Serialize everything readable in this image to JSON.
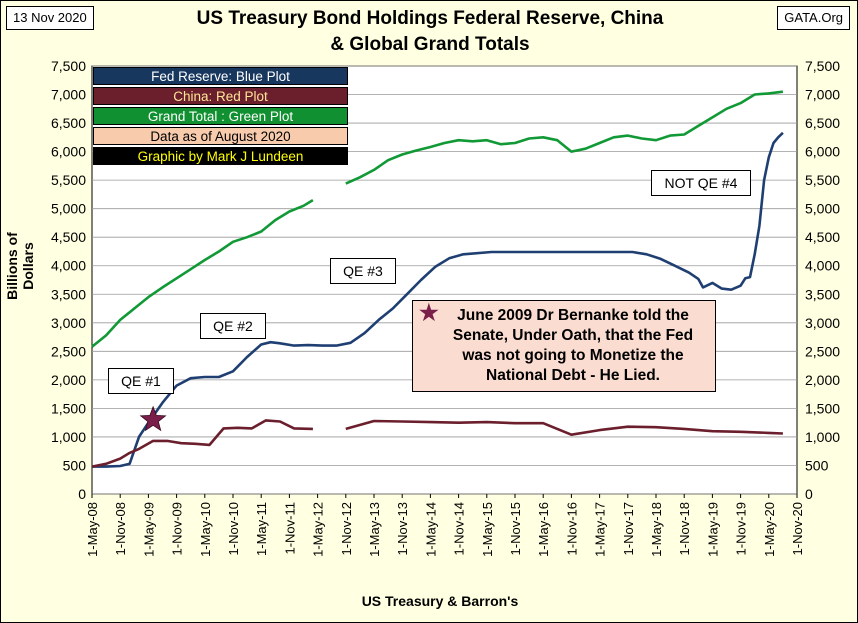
{
  "header": {
    "date": "13 Nov 2020",
    "source": "GATA.Org",
    "title_line1": "US Treasury Bond Holdings Federal Reserve, China",
    "title_line2": "& Global Grand Totals"
  },
  "legend": [
    {
      "label": "Fed Reserve: Blue Plot",
      "bg": "#17375e",
      "fg": "#ffffff"
    },
    {
      "label": "China: Red Plot",
      "bg": "#6b1f2c",
      "fg": "#ffe699"
    },
    {
      "label": "Grand Total : Green Plot",
      "bg": "#109030",
      "fg": "#ffffff"
    },
    {
      "label": "Data as of August 2020",
      "bg": "#f8cbad",
      "fg": "#000000"
    },
    {
      "label": "Graphic by Mark J Lundeen",
      "bg": "#000000",
      "fg": "#ffff00"
    }
  ],
  "annotations": {
    "qe1": "QE #1",
    "qe2": "QE #2",
    "qe3": "QE #3",
    "qe4": "NOT QE #4",
    "note_line1": "June 2009 Dr Bernanke told the",
    "note_line2": "Senate, Under Oath, that the Fed",
    "note_line3": "was not going to Monetize the",
    "note_line4": "National Debt - He Lied."
  },
  "colors": {
    "fed": "#1f3f73",
    "china": "#6b1f2c",
    "total": "#119936",
    "star": "#7a1f4a",
    "plot_bg": "#ffffff",
    "frame_bg": "#ffffe1"
  },
  "chart_data": {
    "type": "line",
    "ylabel": "Billions of Dollars",
    "xlabel": "US Treasury & Barron's",
    "ylim": [
      0,
      7500
    ],
    "y_ticks": [
      0,
      500,
      1000,
      1500,
      2000,
      2500,
      3000,
      3500,
      4000,
      4500,
      5000,
      5500,
      6000,
      6500,
      7000,
      7500
    ],
    "y_tick_labels": [
      "0",
      "500",
      "1,000",
      "1,500",
      "2,000",
      "2,500",
      "3,000",
      "3,500",
      "4,000",
      "4,500",
      "5,000",
      "5,500",
      "6,000",
      "6,500",
      "7,000",
      "7,500"
    ],
    "x_tick_labels": [
      "1-May-08",
      "1-Nov-08",
      "1-May-09",
      "1-Nov-09",
      "1-May-10",
      "1-Nov-10",
      "1-May-11",
      "1-Nov-11",
      "1-May-12",
      "1-Nov-12",
      "1-May-13",
      "1-Nov-13",
      "1-May-14",
      "1-Nov-14",
      "1-May-15",
      "1-Nov-15",
      "1-May-16",
      "1-Nov-16",
      "1-May-17",
      "1-Nov-17",
      "1-May-18",
      "1-Nov-18",
      "1-May-19",
      "1-Nov-19",
      "1-May-20",
      "1-Nov-20"
    ],
    "grid": true,
    "legend_position": "top-left",
    "star_marker": {
      "x": "1-Jun-09",
      "y": 1300
    },
    "series": [
      {
        "name": "Fed Reserve: Blue Plot",
        "x": [
          "2008-05",
          "2008-08",
          "2008-11",
          "2009-01",
          "2009-03",
          "2009-05",
          "2009-08",
          "2009-11",
          "2010-02",
          "2010-05",
          "2010-08",
          "2010-11",
          "2011-02",
          "2011-05",
          "2011-07",
          "2011-09",
          "2011-12",
          "2012-03",
          "2012-06",
          "2012-09",
          "2012-12",
          "2013-03",
          "2013-06",
          "2013-09",
          "2013-12",
          "2014-03",
          "2014-06",
          "2014-09",
          "2014-12",
          "2015-06",
          "2015-12",
          "2016-06",
          "2016-12",
          "2017-06",
          "2017-12",
          "2018-03",
          "2018-06",
          "2018-09",
          "2018-12",
          "2019-02",
          "2019-03",
          "2019-05",
          "2019-07",
          "2019-09",
          "2019-11",
          "2019-12",
          "2020-01",
          "2020-02",
          "2020-03",
          "2020-04",
          "2020-05",
          "2020-06",
          "2020-07",
          "2020-08"
        ],
        "y": [
          480,
          480,
          490,
          530,
          1000,
          1250,
          1600,
          1900,
          2030,
          2050,
          2050,
          2150,
          2400,
          2620,
          2660,
          2640,
          2600,
          2610,
          2600,
          2600,
          2650,
          2820,
          3050,
          3250,
          3500,
          3750,
          3980,
          4130,
          4200,
          4240,
          4240,
          4240,
          4240,
          4240,
          4240,
          4200,
          4120,
          4000,
          3880,
          3770,
          3620,
          3700,
          3600,
          3580,
          3650,
          3780,
          3800,
          4200,
          4700,
          5500,
          5900,
          6150,
          6250,
          6330
        ]
      },
      {
        "name": "China: Red Plot",
        "x": [
          "2008-05",
          "2008-08",
          "2008-11",
          "2009-01",
          "2009-03",
          "2009-06",
          "2009-09",
          "2009-12",
          "2010-03",
          "2010-06",
          "2010-09",
          "2010-12",
          "2011-03",
          "2011-06",
          "2011-09",
          "2011-12",
          "2012-04"
        ],
        "y": [
          480,
          530,
          620,
          720,
          790,
          930,
          930,
          890,
          880,
          860,
          1150,
          1160,
          1150,
          1290,
          1270,
          1150,
          1140
        ],
        "x2": [
          "2012-11",
          "2013-05",
          "2013-11",
          "2014-05",
          "2014-11",
          "2015-05",
          "2015-11",
          "2016-05",
          "2016-11",
          "2017-05",
          "2017-11",
          "2018-05",
          "2018-11",
          "2019-05",
          "2019-11",
          "2020-05",
          "2020-08"
        ],
        "y2": [
          1140,
          1280,
          1270,
          1260,
          1250,
          1260,
          1240,
          1240,
          1040,
          1120,
          1180,
          1170,
          1140,
          1100,
          1090,
          1070,
          1060
        ]
      },
      {
        "name": "Grand Total : Green Plot",
        "x": [
          "2008-05",
          "2008-08",
          "2008-11",
          "2009-02",
          "2009-05",
          "2009-08",
          "2009-11",
          "2010-02",
          "2010-05",
          "2010-08",
          "2010-11",
          "2011-02",
          "2011-05",
          "2011-08",
          "2011-11",
          "2012-02",
          "2012-04"
        ],
        "y": [
          2580,
          2780,
          3050,
          3250,
          3450,
          3620,
          3780,
          3940,
          4100,
          4250,
          4420,
          4500,
          4600,
          4800,
          4950,
          5050,
          5150
        ],
        "x2": [
          "2012-11",
          "2013-02",
          "2013-05",
          "2013-08",
          "2013-11",
          "2014-02",
          "2014-05",
          "2014-08",
          "2014-11",
          "2015-02",
          "2015-05",
          "2015-08",
          "2015-11",
          "2016-02",
          "2016-05",
          "2016-08",
          "2016-11",
          "2017-02",
          "2017-05",
          "2017-08",
          "2017-11",
          "2018-02",
          "2018-05",
          "2018-08",
          "2018-11",
          "2019-02",
          "2019-05",
          "2019-08",
          "2019-11",
          "2020-02",
          "2020-05",
          "2020-08"
        ],
        "y2": [
          5440,
          5550,
          5680,
          5850,
          5950,
          6020,
          6080,
          6150,
          6200,
          6180,
          6200,
          6130,
          6150,
          6230,
          6250,
          6200,
          6000,
          6050,
          6150,
          6250,
          6280,
          6230,
          6200,
          6280,
          6300,
          6450,
          6600,
          6750,
          6850,
          7000,
          7020,
          7050
        ]
      }
    ]
  }
}
